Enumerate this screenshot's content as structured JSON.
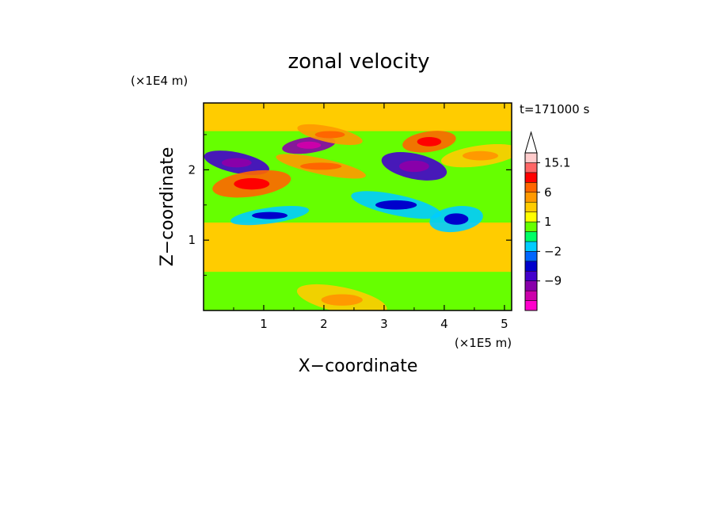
{
  "chart_data": {
    "type": "heatmap",
    "title": "zonal velocity",
    "xlabel": "X−coordinate",
    "ylabel": "Z−coordinate",
    "x_unit": "(×1E5 m)",
    "y_unit": "(×1E4 m)",
    "time_label": "t=171000 s",
    "xlim": [
      0,
      5.12
    ],
    "ylim": [
      0,
      2.95
    ],
    "x_ticks": [
      1,
      2,
      3,
      4,
      5
    ],
    "y_ticks": [
      1,
      2
    ],
    "x_tick_labels": [
      "1",
      "2",
      "3",
      "4",
      "5"
    ],
    "y_tick_labels": [
      "1",
      "2"
    ],
    "colorbar": {
      "levels": [
        -15,
        -12,
        -9,
        -6,
        -3,
        -2,
        -1,
        0,
        1,
        2,
        3,
        6,
        9,
        12,
        15.1
      ],
      "labeled_levels": [
        -9,
        -2,
        1,
        6,
        15.1
      ],
      "labels": [
        "−9",
        "−2",
        "1",
        "6",
        "15.1"
      ],
      "extend": "max",
      "colors": [
        "#ff00cc",
        "#cc00aa",
        "#8800aa",
        "#4400cc",
        "#0000cc",
        "#0066ff",
        "#00ccff",
        "#00ff66",
        "#66ff00",
        "#ffff00",
        "#ffcc00",
        "#ff9900",
        "#ff6600",
        "#ff0000",
        "#ff6666",
        "#ffcccc"
      ]
    },
    "features": [
      {
        "x": 1.75,
        "z": 2.35,
        "value": -12
      },
      {
        "x": 0.55,
        "z": 2.1,
        "value": -8
      },
      {
        "x": 0.8,
        "z": 1.8,
        "value": 6
      },
      {
        "x": 1.95,
        "z": 2.05,
        "value": 4
      },
      {
        "x": 3.75,
        "z": 2.4,
        "value": 6
      },
      {
        "x": 3.5,
        "z": 2.05,
        "value": -7
      },
      {
        "x": 1.1,
        "z": 1.35,
        "value": -2
      },
      {
        "x": 3.2,
        "z": 1.5,
        "value": -2
      },
      {
        "x": 4.2,
        "z": 1.3,
        "value": -2
      },
      {
        "x": 2.1,
        "z": 2.5,
        "value": 4
      },
      {
        "x": 4.6,
        "z": 2.2,
        "value": 2
      },
      {
        "x": 2.3,
        "z": 0.15,
        "value": 2
      }
    ]
  }
}
